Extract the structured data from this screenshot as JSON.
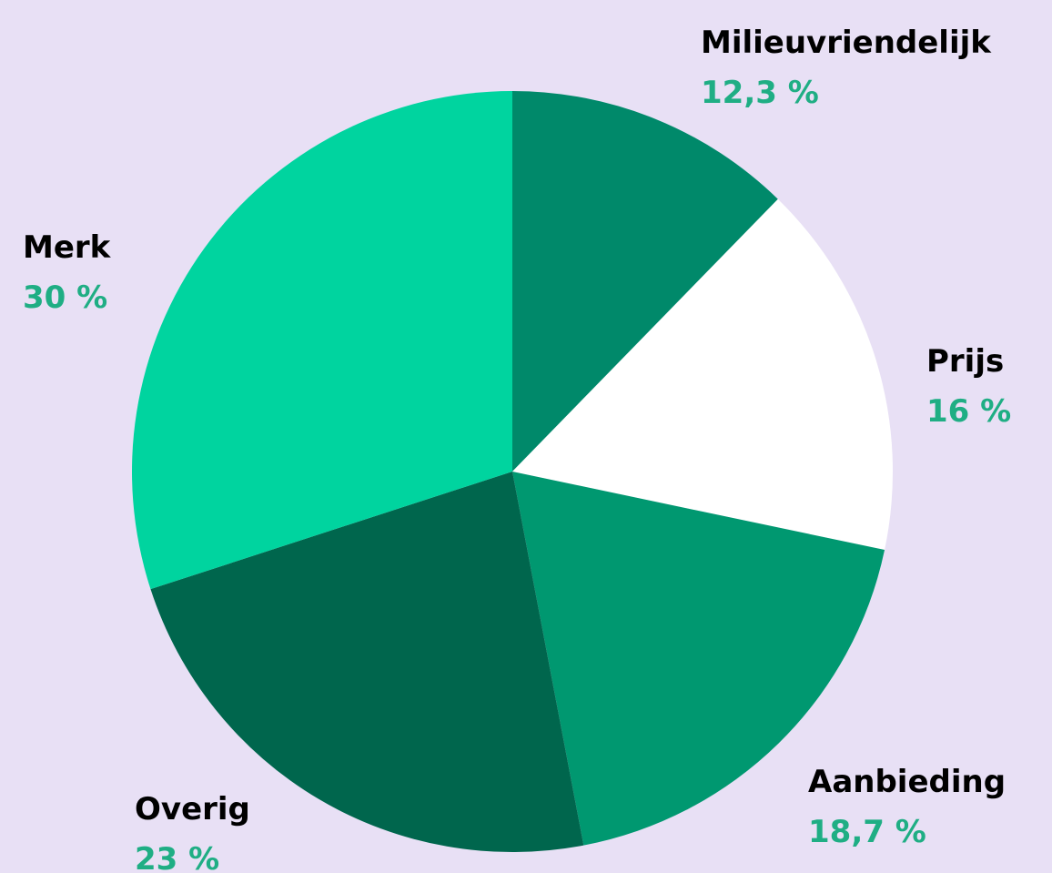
{
  "chart_data": {
    "type": "pie",
    "categories": [
      "Milieuvriendelijk",
      "Prijs",
      "Aanbieding",
      "Overig",
      "Merk"
    ],
    "values": [
      12.3,
      16,
      18.7,
      23,
      30
    ],
    "value_labels": [
      "12,3 %",
      "16 %",
      "18,7 %",
      "23 %",
      "30 %"
    ],
    "colors": [
      "#00896a",
      "#ffffff",
      "#009870",
      "#00664d",
      "#00d49f"
    ]
  }
}
